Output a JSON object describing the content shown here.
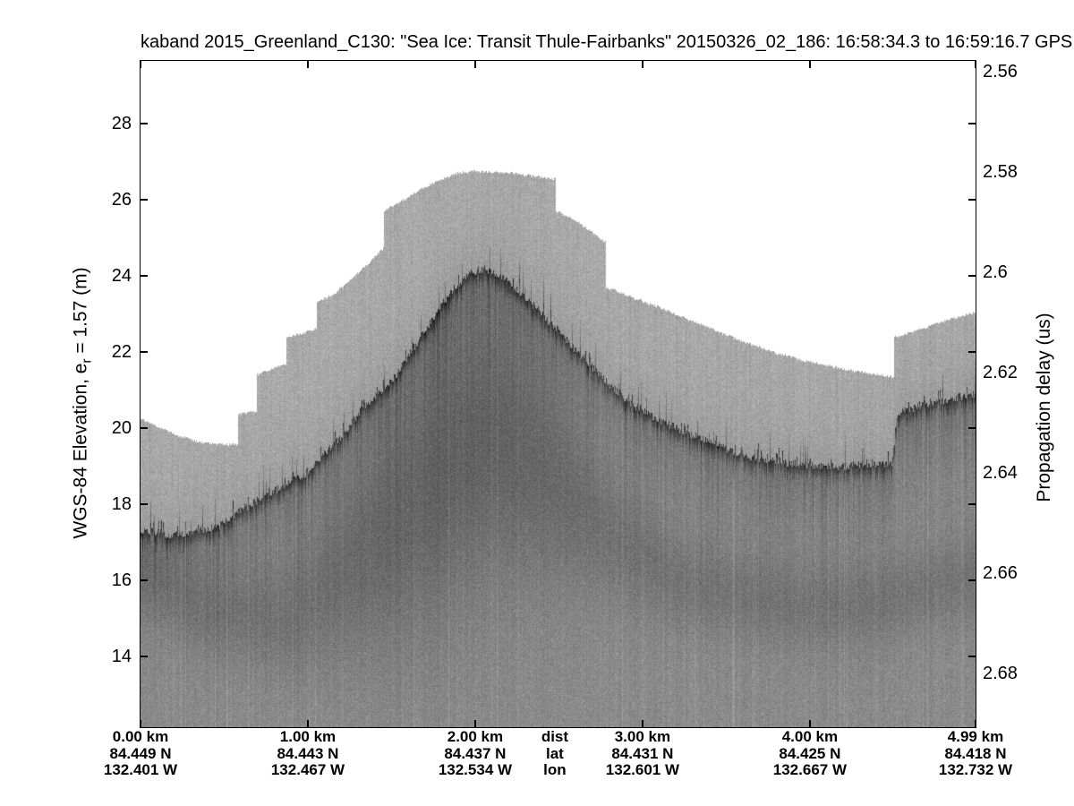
{
  "title": "kaband 2015_Greenland_C130: \"Sea Ice: Transit Thule-Fairbanks\"  20150326_02_186: 16:58:34.3 to 16:59:16.7 GPS",
  "axes": {
    "left": {
      "label_pre": "WGS-84 Elevation, e",
      "label_sub": "r",
      "label_post": " = 1.57 (m)"
    },
    "right": {
      "label": "Propagation delay (us)"
    }
  },
  "bottom_axis": {
    "row_headers": {
      "km": 2.476,
      "rows": [
        "dist",
        "lat",
        "lon"
      ]
    },
    "groups": [
      {
        "km": 0.0,
        "dist": "0.00 km",
        "lat": "84.449 N",
        "lon": "132.401 W"
      },
      {
        "km": 1.0,
        "dist": "1.00 km",
        "lat": "84.443 N",
        "lon": "132.467 W"
      },
      {
        "km": 2.0,
        "dist": "2.00 km",
        "lat": "84.437 N",
        "lon": "132.534 W"
      },
      {
        "km": 3.0,
        "dist": "3.00 km",
        "lat": "84.431 N",
        "lon": "132.601 W"
      },
      {
        "km": 4.0,
        "dist": "4.00 km",
        "lat": "84.425 N",
        "lon": "132.667 W"
      },
      {
        "km": 4.99,
        "dist": "4.99 km",
        "lat": "84.418 N",
        "lon": "132.732 W"
      }
    ]
  },
  "chart_data": {
    "type": "heatmap",
    "subtype": "radar-echogram",
    "title": "kaband 2015_Greenland_C130: \"Sea Ice: Transit Thule-Fairbanks\"  20150326_02_186: 16:58:34.3 to 16:59:16.7 GPS",
    "x_axis": {
      "unit": "km",
      "lim": [
        0,
        4.99
      ],
      "ticks": [
        0,
        1,
        2,
        3,
        4,
        4.99
      ],
      "tick_labels": [
        "0.00 km",
        "1.00 km",
        "2.00 km",
        "3.00 km",
        "4.00 km",
        "4.99 km"
      ],
      "lat_labels": [
        "84.449 N",
        "84.443 N",
        "84.437 N",
        "84.431 N",
        "84.425 N",
        "84.418 N"
      ],
      "lon_labels": [
        "132.401 W",
        "132.467 W",
        "132.534 W",
        "132.601 W",
        "132.667 W",
        "132.732 W"
      ],
      "row_headers": [
        "dist",
        "lat",
        "lon"
      ]
    },
    "y_axis_left": {
      "label": "WGS-84 Elevation, e_r = 1.57 (m)",
      "unit": "m",
      "lim": [
        12.141,
        29.647
      ],
      "ticks": [
        28,
        26,
        24,
        22,
        20,
        18,
        16,
        14
      ],
      "tick_labels": [
        "28",
        "26",
        "24",
        "22",
        "20",
        "18",
        "16",
        "14"
      ]
    },
    "y_axis_right": {
      "label": "Propagation delay (us)",
      "unit": "us",
      "lim_top_to_bottom": [
        2.5579,
        2.6907
      ],
      "ticks": [
        2.56,
        2.58,
        2.6,
        2.62,
        2.64,
        2.66,
        2.68
      ],
      "tick_labels": [
        "2.56",
        "2.58",
        "2.6",
        "2.62",
        "2.64",
        "2.66",
        "2.68"
      ]
    },
    "surface_profile_km_m": [
      [
        0.0,
        20.26
      ],
      [
        0.1,
        20.05
      ],
      [
        0.22,
        19.82
      ],
      [
        0.35,
        19.64
      ],
      [
        0.5,
        19.58
      ],
      [
        0.58,
        19.58
      ],
      [
        0.58,
        20.38
      ],
      [
        0.65,
        20.43
      ],
      [
        0.69,
        20.45
      ],
      [
        0.69,
        21.4
      ],
      [
        0.8,
        21.6
      ],
      [
        0.87,
        21.7
      ],
      [
        0.87,
        22.4
      ],
      [
        0.96,
        22.5
      ],
      [
        1.05,
        22.62
      ],
      [
        1.05,
        23.32
      ],
      [
        1.15,
        23.52
      ],
      [
        1.25,
        23.9
      ],
      [
        1.35,
        24.3
      ],
      [
        1.45,
        24.73
      ],
      [
        1.45,
        25.72
      ],
      [
        1.55,
        25.95
      ],
      [
        1.7,
        26.35
      ],
      [
        1.88,
        26.7
      ],
      [
        2.0,
        26.76
      ],
      [
        2.2,
        26.72
      ],
      [
        2.4,
        26.6
      ],
      [
        2.48,
        26.55
      ],
      [
        2.48,
        25.72
      ],
      [
        2.6,
        25.45
      ],
      [
        2.7,
        25.15
      ],
      [
        2.78,
        24.88
      ],
      [
        2.78,
        23.72
      ],
      [
        2.9,
        23.5
      ],
      [
        3.1,
        23.18
      ],
      [
        3.3,
        22.83
      ],
      [
        3.55,
        22.36
      ],
      [
        3.8,
        21.98
      ],
      [
        4.0,
        21.75
      ],
      [
        4.2,
        21.56
      ],
      [
        4.35,
        21.45
      ],
      [
        4.49,
        21.36
      ],
      [
        4.5,
        21.36
      ],
      [
        4.5,
        22.38
      ],
      [
        4.65,
        22.6
      ],
      [
        4.8,
        22.82
      ],
      [
        4.99,
        23.06
      ]
    ],
    "surface_return_band_km_m": [
      [
        0.0,
        17.35
      ],
      [
        0.2,
        17.18
      ],
      [
        0.45,
        17.4
      ],
      [
        0.6,
        17.85
      ],
      [
        0.75,
        18.25
      ],
      [
        0.98,
        18.8
      ],
      [
        1.17,
        19.65
      ],
      [
        1.34,
        20.6
      ],
      [
        1.52,
        21.35
      ],
      [
        1.65,
        22.25
      ],
      [
        1.8,
        23.25
      ],
      [
        1.95,
        24.05
      ],
      [
        2.05,
        24.2
      ],
      [
        2.2,
        23.85
      ],
      [
        2.4,
        23.0
      ],
      [
        2.6,
        22.05
      ],
      [
        2.8,
        21.15
      ],
      [
        2.9,
        20.75
      ],
      [
        3.1,
        20.2
      ],
      [
        3.35,
        19.72
      ],
      [
        3.6,
        19.3
      ],
      [
        3.9,
        19.06
      ],
      [
        4.15,
        19.0
      ],
      [
        4.4,
        19.06
      ],
      [
        4.49,
        19.1
      ],
      [
        4.52,
        20.4
      ],
      [
        4.7,
        20.66
      ],
      [
        4.99,
        20.9
      ]
    ],
    "subsurface_scatter_band_km_m": [
      [
        0.0,
        16.2
      ],
      [
        0.4,
        15.2
      ],
      [
        0.9,
        15.0
      ],
      [
        1.4,
        17.0
      ],
      [
        1.9,
        19.3
      ],
      [
        2.1,
        19.8
      ],
      [
        2.4,
        18.9
      ],
      [
        2.8,
        17.2
      ],
      [
        3.2,
        16.0
      ],
      [
        3.6,
        15.6
      ],
      [
        4.0,
        15.3
      ],
      [
        4.4,
        15.4
      ],
      [
        4.7,
        15.8
      ],
      [
        4.99,
        16.1
      ]
    ],
    "colors": {
      "background": "#ffffff",
      "axis": "#000000",
      "sidelobe_gray": "#a6a6a6",
      "return_dark": "#383838",
      "body_gray": "#7e7e7e"
    }
  }
}
